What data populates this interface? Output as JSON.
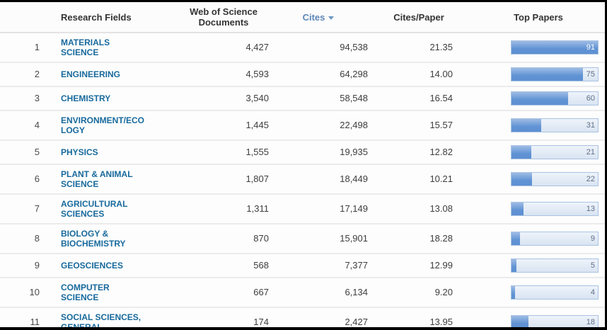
{
  "table": {
    "columns": {
      "rank": "",
      "field": "Research Fields",
      "documents": "Web of Science Documents",
      "cites": "Cites",
      "cites_per_paper": "Cites/Paper",
      "top_papers": "Top Papers"
    },
    "sort": {
      "sorted_by": "Cites",
      "direction": "desc"
    },
    "bar_max": 91,
    "rows": [
      {
        "rank": 1,
        "field": "MATERIALS SCIENCE",
        "documents": "4,427",
        "cites": "94,538",
        "cites_per_paper": "21.35",
        "top_papers": 91
      },
      {
        "rank": 2,
        "field": "ENGINEERING",
        "documents": "4,593",
        "cites": "64,298",
        "cites_per_paper": "14.00",
        "top_papers": 75
      },
      {
        "rank": 3,
        "field": "CHEMISTRY",
        "documents": "3,540",
        "cites": "58,548",
        "cites_per_paper": "16.54",
        "top_papers": 60
      },
      {
        "rank": 4,
        "field": "ENVIRONMENT/ECOLOGY",
        "documents": "1,445",
        "cites": "22,498",
        "cites_per_paper": "15.57",
        "top_papers": 31
      },
      {
        "rank": 5,
        "field": "PHYSICS",
        "documents": "1,555",
        "cites": "19,935",
        "cites_per_paper": "12.82",
        "top_papers": 21
      },
      {
        "rank": 6,
        "field": "PLANT & ANIMAL SCIENCE",
        "documents": "1,807",
        "cites": "18,449",
        "cites_per_paper": "10.21",
        "top_papers": 22
      },
      {
        "rank": 7,
        "field": "AGRICULTURAL SCIENCES",
        "documents": "1,311",
        "cites": "17,149",
        "cites_per_paper": "13.08",
        "top_papers": 13
      },
      {
        "rank": 8,
        "field": "BIOLOGY & BIOCHEMISTRY",
        "documents": "870",
        "cites": "15,901",
        "cites_per_paper": "18.28",
        "top_papers": 9
      },
      {
        "rank": 9,
        "field": "GEOSCIENCES",
        "documents": "568",
        "cites": "7,377",
        "cites_per_paper": "12.99",
        "top_papers": 5
      },
      {
        "rank": 10,
        "field": "COMPUTER SCIENCE",
        "documents": "667",
        "cites": "6,134",
        "cites_per_paper": "9.20",
        "top_papers": 4
      },
      {
        "rank": 11,
        "field": "SOCIAL SCIENCES, GENERAL",
        "documents": "174",
        "cites": "2,427",
        "cites_per_paper": "13.95",
        "top_papers": 18
      }
    ]
  },
  "colors": {
    "field_link": "#17699c",
    "sorted_header": "#5d87b8",
    "bar_fill": "#6093d4",
    "bar_track": "#dde7f3",
    "bar_border": "#a9c3e2"
  }
}
